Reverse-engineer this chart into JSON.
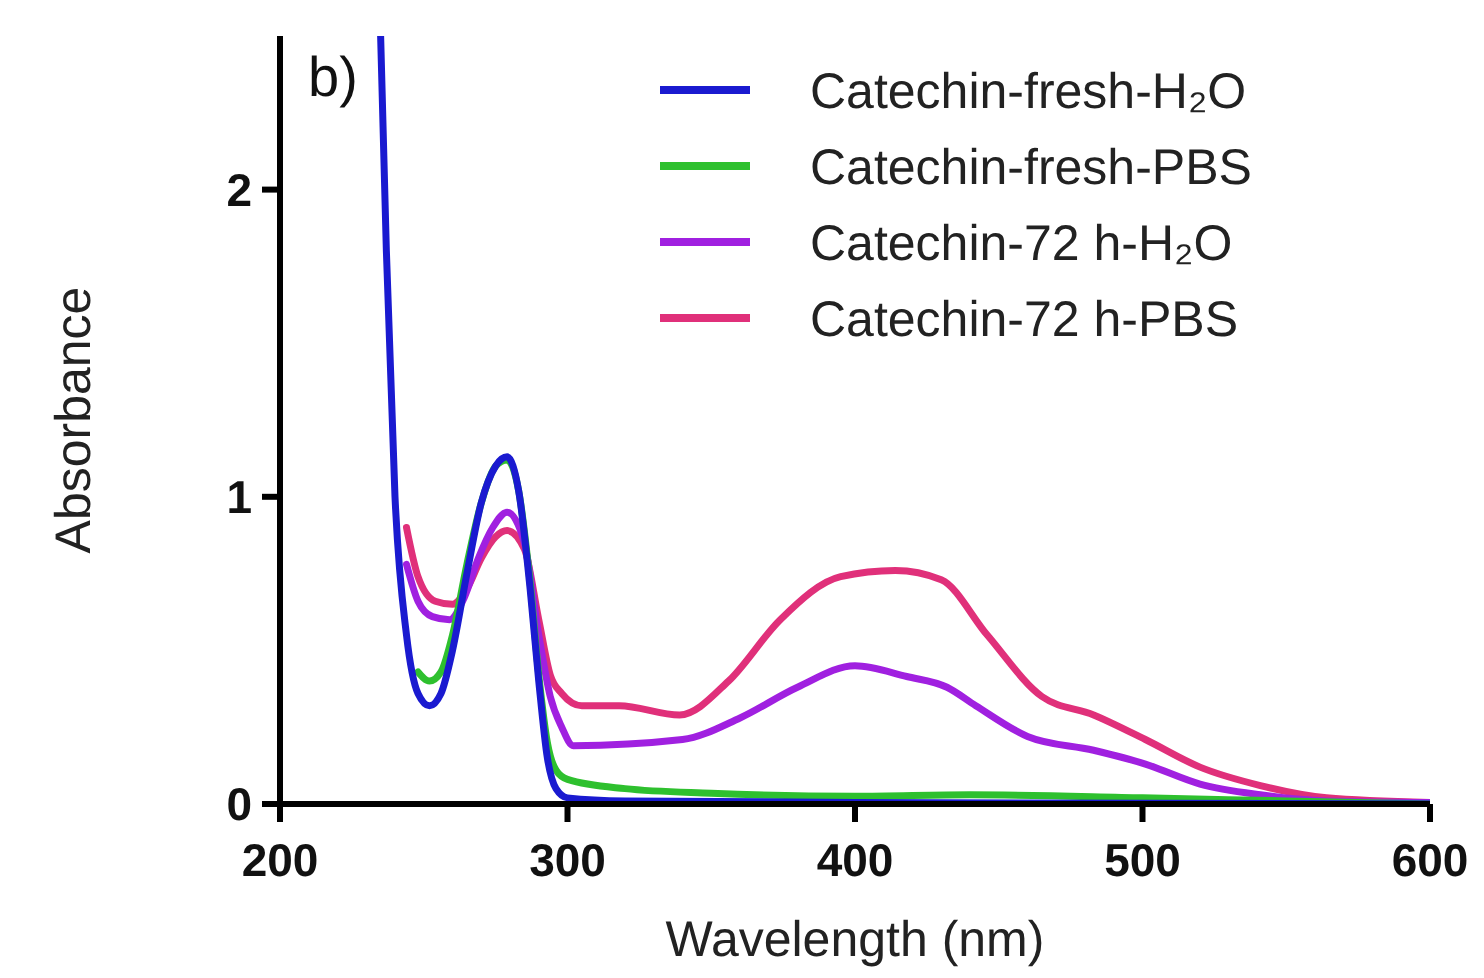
{
  "chart_data": {
    "type": "line",
    "xlabel": "Wavelength (nm)",
    "ylabel": "Absorbance",
    "annotations": [
      "b)"
    ],
    "xlim": [
      200,
      600
    ],
    "xticks": [
      200,
      300,
      400,
      500,
      600
    ],
    "ylim": [
      0,
      2.5
    ],
    "yticks": [
      0,
      1,
      2
    ],
    "grid": false,
    "legend": "top right",
    "marker": "none",
    "line_style": "solid",
    "series": [
      {
        "name": "Catechin-fresh-H₂O",
        "color": "#1a1ad0",
        "x": [
          235,
          237,
          240,
          244,
          248,
          252,
          256,
          260,
          265,
          270,
          275,
          279,
          283,
          287,
          290,
          293,
          296,
          300,
          320,
          400,
          600
        ],
        "values": [
          2.5,
          1.8,
          1.0,
          0.55,
          0.36,
          0.32,
          0.36,
          0.5,
          0.75,
          0.98,
          1.1,
          1.13,
          1.02,
          0.7,
          0.4,
          0.15,
          0.05,
          0.02,
          0.01,
          0.005,
          0
        ]
      },
      {
        "name": "Catechin-fresh-PBS",
        "color": "#2ec02e",
        "x": [
          248,
          252,
          256,
          260,
          265,
          270,
          275,
          279,
          283,
          287,
          290,
          293,
          296,
          300,
          320,
          350,
          400,
          440,
          500,
          550,
          600
        ],
        "values": [
          0.43,
          0.4,
          0.43,
          0.55,
          0.78,
          0.98,
          1.1,
          1.12,
          1.02,
          0.72,
          0.42,
          0.2,
          0.11,
          0.08,
          0.05,
          0.035,
          0.025,
          0.03,
          0.02,
          0.01,
          0
        ]
      },
      {
        "name": "Catechin-72 h-H₂O",
        "color": "#a020e0",
        "x": [
          244,
          248,
          253,
          259,
          264,
          269,
          274,
          279,
          285,
          290,
          294,
          298,
          302,
          340,
          360,
          380,
          400,
          418,
          432,
          442,
          460,
          483,
          501,
          520,
          541,
          564,
          600
        ],
        "values": [
          0.78,
          0.66,
          0.61,
          0.6,
          0.67,
          0.8,
          0.9,
          0.95,
          0.85,
          0.55,
          0.35,
          0.25,
          0.19,
          0.21,
          0.28,
          0.38,
          0.45,
          0.415,
          0.38,
          0.32,
          0.22,
          0.175,
          0.13,
          0.065,
          0.03,
          0.01,
          0.005
        ]
      },
      {
        "name": "Catechin-72 h-PBS",
        "color": "#e0307a",
        "x": [
          244,
          248,
          254,
          260,
          265,
          270,
          275,
          279,
          285,
          290,
          294,
          298,
          305,
          318,
          339,
          356,
          374,
          395,
          414,
          430,
          446,
          465,
          483,
          501,
          520,
          541,
          564,
          600
        ],
        "values": [
          0.9,
          0.74,
          0.66,
          0.65,
          0.7,
          0.8,
          0.87,
          0.89,
          0.83,
          0.6,
          0.42,
          0.36,
          0.32,
          0.32,
          0.29,
          0.4,
          0.6,
          0.74,
          0.76,
          0.73,
          0.55,
          0.35,
          0.29,
          0.21,
          0.12,
          0.06,
          0.02,
          0.005
        ]
      }
    ]
  }
}
